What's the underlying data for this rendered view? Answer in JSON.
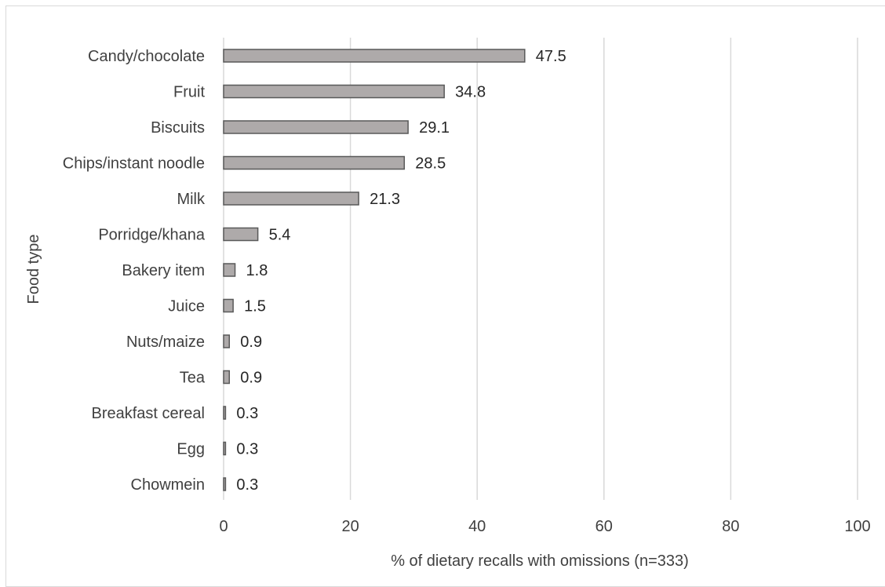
{
  "chart_data": {
    "type": "bar",
    "orientation": "horizontal",
    "categories": [
      "Candy/chocolate",
      "Fruit",
      "Biscuits",
      "Chips/instant noodle",
      "Milk",
      "Porridge/khana",
      "Bakery item",
      "Juice",
      "Nuts/maize",
      "Tea",
      "Breakfast cereal",
      "Egg",
      "Chowmein"
    ],
    "values": [
      47.5,
      34.8,
      29.1,
      28.5,
      21.3,
      5.4,
      1.8,
      1.5,
      0.9,
      0.9,
      0.3,
      0.3,
      0.3
    ],
    "value_labels": [
      "47.5",
      "34.8",
      "29.1",
      "28.5",
      "21.3",
      "5.4",
      "1.8",
      "1.5",
      "0.9",
      "0.9",
      "0.3",
      "0.3",
      "0.3"
    ],
    "xlabel": "% of dietary recalls with omissions (n=333)",
    "ylabel": "Food type",
    "xlim": [
      0,
      100
    ],
    "xticks": [
      0,
      20,
      40,
      60,
      80,
      100
    ],
    "xtick_labels": [
      "0",
      "20",
      "40",
      "60",
      "80",
      "100"
    ],
    "grid": "vertical",
    "legend": "none",
    "colors": {
      "bar_fill": "#aeaaaa",
      "bar_stroke": "#595959",
      "grid": "#d9d9d9",
      "text": "#404040"
    }
  }
}
